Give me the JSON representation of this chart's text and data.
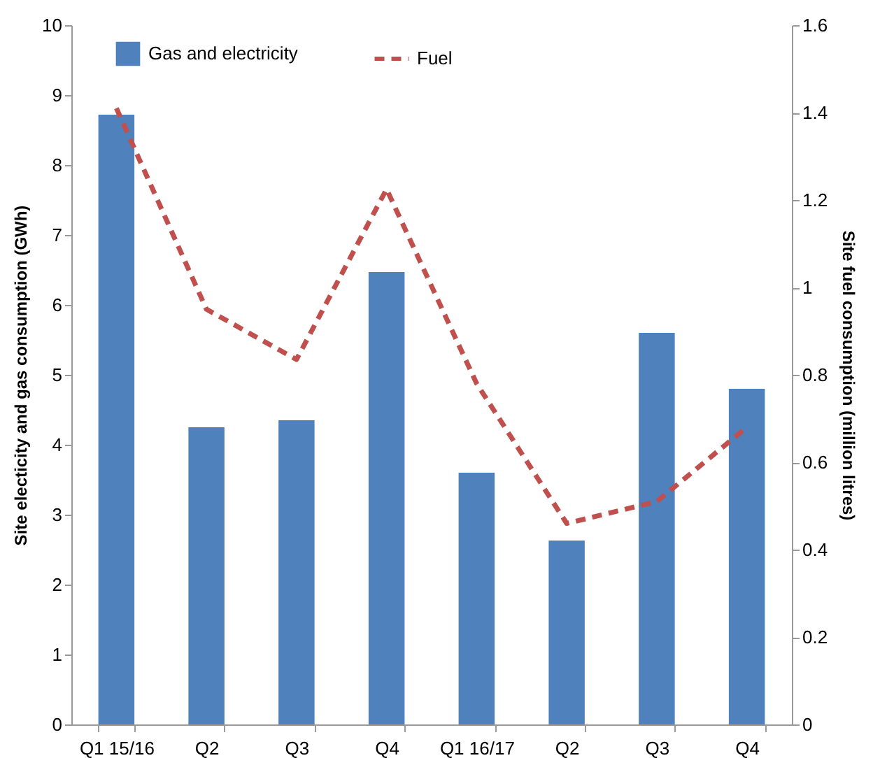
{
  "chart_data": {
    "type": "bar",
    "categories": [
      "Q1  15/16",
      "Q2",
      "Q3",
      "Q4",
      "Q1  16/17",
      "Q2",
      "Q3",
      "Q4"
    ],
    "ylabel": "Site electicity and gas consumption (GWh)",
    "y2label": "Site fuel consumption (million litres)",
    "ylim": [
      0,
      10
    ],
    "yticks": [
      0,
      1,
      2,
      3,
      4,
      5,
      6,
      7,
      8,
      9,
      10
    ],
    "y2lim": [
      0,
      1.6
    ],
    "y2ticks": [
      0,
      0.2,
      0.4,
      0.6,
      0.8,
      1,
      1.2,
      1.4,
      1.6
    ],
    "legend": "top left",
    "series": [
      {
        "name": "Gas and electricity",
        "color": "#4f81bd",
        "values": [
          8.72,
          4.25,
          4.35,
          6.47,
          3.6,
          2.63,
          5.6,
          4.8
        ]
      },
      {
        "name": "Fuel",
        "type": "line",
        "axis": "y2",
        "line_style": "dashed",
        "color": "#c0504d",
        "values": [
          1.41,
          0.95,
          0.835,
          1.225,
          0.78,
          0.46,
          0.51,
          0.68
        ]
      }
    ]
  }
}
